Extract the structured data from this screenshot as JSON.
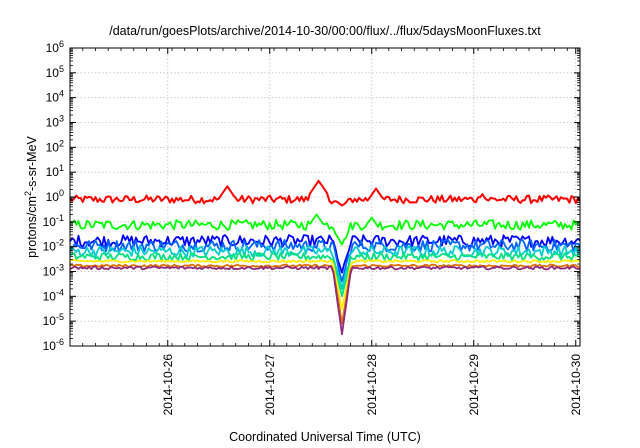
{
  "chart_data": {
    "type": "line",
    "title": "/data/run/goesPlots/archive/2014-10-30/00:00/flux/../flux/5daysMoonFluxes.txt",
    "xlabel": "Coordinated Universal Time (UTC)",
    "ylabel_parts": {
      "base": "protons/cm",
      "sup": "2",
      "rest": "-s-sr-MeV"
    },
    "x_ticks": [
      "2014-10-26",
      "2014-10-27",
      "2014-10-28",
      "2014-10-29",
      "2014-10-30"
    ],
    "xlim": [
      "2014-10-25 01:00",
      "2014-10-30 01:00"
    ],
    "y_scale": "log",
    "ylim": [
      1e-06,
      1000000.0
    ],
    "y_tick_exponents": [
      -6,
      -5,
      -4,
      -3,
      -2,
      -1,
      0,
      1,
      2,
      3,
      4,
      5,
      6
    ],
    "grid": true,
    "dip": {
      "time": "2014-10-27 17:00",
      "min_value": 3e-06
    },
    "series": [
      {
        "color": "#ff0000",
        "level": 0.8,
        "noise": 0.16,
        "dip_to": 0.45,
        "peaks": [
          [
            "2014-10-26 14:00",
            2.7
          ],
          [
            "2014-10-27 11:30",
            4.5
          ],
          [
            "2014-10-28 01:00",
            2.2
          ],
          [
            "2014-10-29 02:00",
            1.3
          ]
        ]
      },
      {
        "color": "#00ff00",
        "level": 0.075,
        "noise": 0.2,
        "dip_to": 0.012,
        "peaks": [
          [
            "2014-10-27 11:00",
            0.2
          ],
          [
            "2014-10-28 00:00",
            0.15
          ]
        ]
      },
      {
        "color": "#0000ff",
        "level": 0.017,
        "noise": 0.24,
        "dip_to": 0.0009,
        "peaks": []
      },
      {
        "color": "#0066ff",
        "level": 0.011,
        "noise": 0.24,
        "dip_to": 0.0004,
        "peaks": []
      },
      {
        "color": "#00cccc",
        "level": 0.0065,
        "noise": 0.22,
        "dip_to": 0.0002,
        "peaks": []
      },
      {
        "color": "#00e080",
        "level": 0.004,
        "noise": 0.15,
        "dip_to": 0.0001,
        "peaks": []
      },
      {
        "color": "#ffee00",
        "level": 0.0026,
        "noise": 0.05,
        "dip_to": 3e-05,
        "peaks": []
      },
      {
        "color": "#e07000",
        "level": 0.0017,
        "noise": 0.05,
        "dip_to": 8e-06,
        "peaks": []
      },
      {
        "color": "#8e2a7e",
        "level": 0.0014,
        "noise": 0.06,
        "dip_to": 3e-06,
        "peaks": [
          [
            "2014-10-29 19:00",
            0.0008
          ]
        ]
      }
    ]
  }
}
